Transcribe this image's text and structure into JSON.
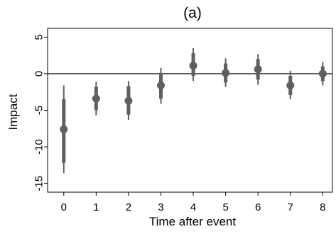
{
  "chart_data": {
    "type": "scatter",
    "title": "(a)",
    "xlabel": "Time after event",
    "ylabel": "Impact",
    "x": [
      0,
      1,
      2,
      3,
      4,
      5,
      6,
      7,
      8
    ],
    "series": [
      {
        "values": [
          -7.6,
          -3.4,
          -3.7,
          -1.6,
          1.1,
          0.1,
          0.6,
          -1.6,
          0.0
        ],
        "ci_inner_low": [
          -12.2,
          -5.0,
          -5.6,
          -3.4,
          -0.3,
          -1.2,
          -0.8,
          -2.9,
          -1.0
        ],
        "ci_inner_high": [
          -3.5,
          -1.8,
          -1.7,
          0.1,
          2.8,
          1.4,
          2.0,
          -0.3,
          1.0
        ],
        "ci_outer_low": [
          -13.6,
          -5.7,
          -6.3,
          -4.1,
          -1.0,
          -1.8,
          -1.5,
          -3.5,
          -1.6
        ],
        "ci_outer_high": [
          -1.6,
          -1.1,
          -1.0,
          0.8,
          3.5,
          2.1,
          2.7,
          0.4,
          1.6
        ]
      }
    ],
    "xticks": [
      0,
      1,
      2,
      3,
      4,
      5,
      6,
      7,
      8
    ],
    "yticks": [
      5,
      0,
      -5,
      -10,
      -15
    ],
    "xlim": [
      -0.5,
      8.3
    ],
    "ylim": [
      -16.2,
      6.2
    ],
    "reference_line_y": 0,
    "grid": false,
    "colors": {
      "marker": "#5f5f5f",
      "zero_line": "#444444",
      "axis": "#000000"
    }
  }
}
